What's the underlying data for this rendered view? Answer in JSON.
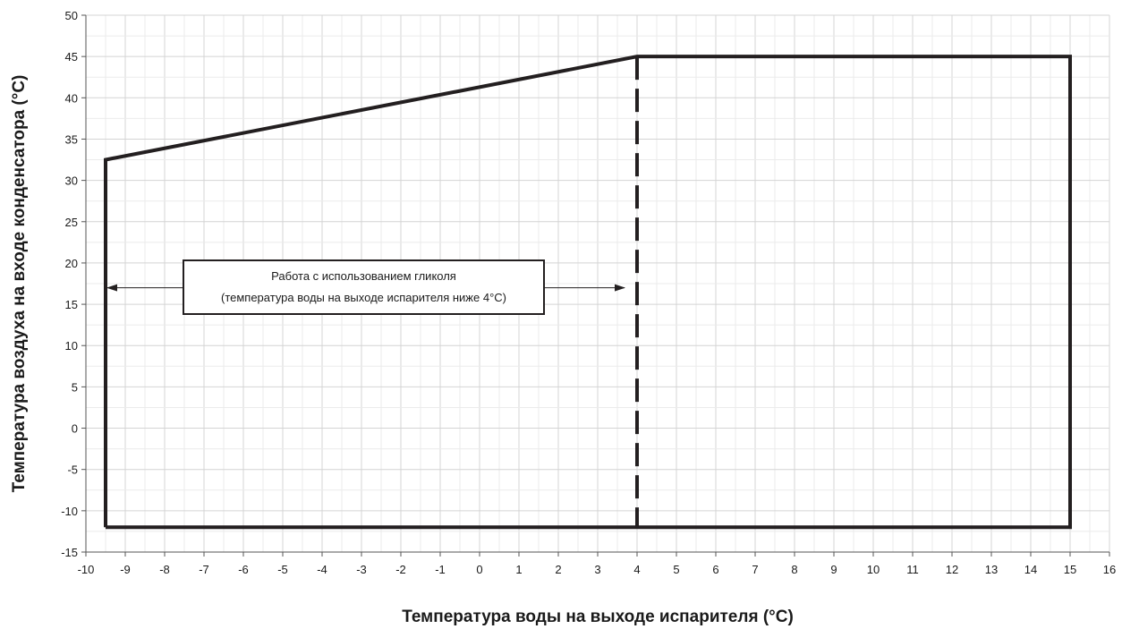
{
  "chart_data": {
    "type": "line",
    "xlabel": "Температура воды на выходе испарителя (°C)",
    "ylabel": "Температура воздуха на входе конденсатора (°C)",
    "xlim": [
      -10,
      16
    ],
    "ylim": [
      -15,
      50
    ],
    "x_ticks": [
      -10,
      -9,
      -8,
      -7,
      -6,
      -5,
      -4,
      -3,
      -2,
      -1,
      0,
      1,
      2,
      3,
      4,
      5,
      6,
      7,
      8,
      9,
      10,
      11,
      12,
      13,
      14,
      15,
      16
    ],
    "y_ticks": [
      -15,
      -10,
      -5,
      0,
      5,
      10,
      15,
      20,
      25,
      30,
      35,
      40,
      45,
      50
    ],
    "grid": true,
    "series": [
      {
        "style": "solid",
        "color": "#231f20",
        "points": [
          [
            -9.5,
            -12
          ],
          [
            -9.5,
            32.5
          ],
          [
            4,
            45
          ],
          [
            15,
            45
          ],
          [
            15,
            -12
          ],
          [
            -9.5,
            -12
          ]
        ]
      },
      {
        "style": "dashed",
        "color": "#231f20",
        "points": [
          [
            4,
            45
          ],
          [
            4,
            -12
          ]
        ]
      }
    ],
    "annotation": {
      "lines": [
        "Работа с использованием гликоля",
        "(температура воды на выходе испарителя ниже 4°C)"
      ],
      "arrow_from_x": -9.5,
      "arrow_to_x": 4,
      "arrow_y": 17
    }
  }
}
